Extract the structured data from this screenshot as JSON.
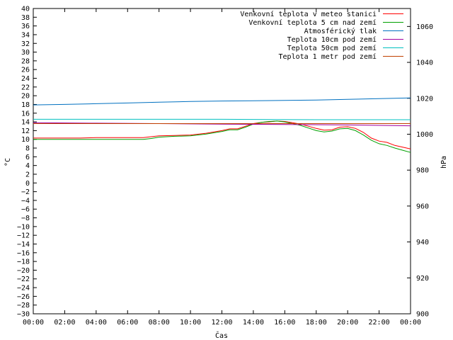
{
  "chart_data": {
    "type": "line",
    "xlabel": "Čas",
    "ylabel_left": "°C",
    "ylabel_right": "hPa",
    "x_ticks": [
      "00:00",
      "02:00",
      "04:00",
      "06:00",
      "08:00",
      "10:00",
      "12:00",
      "14:00",
      "16:00",
      "18:00",
      "20:00",
      "22:00",
      "00:00"
    ],
    "xlim_hours": [
      0,
      24
    ],
    "ylim_left": [
      -30,
      40
    ],
    "y_left_step": 2,
    "ylim_right": [
      900,
      1070
    ],
    "y_right_ticks": [
      900,
      920,
      940,
      960,
      980,
      1000,
      1020,
      1040,
      1060
    ],
    "grid": false,
    "legend_placement": "top-right",
    "series": [
      {
        "name": "Venkovní teplota v meteo stanici",
        "color": "#ff0000",
        "axis": "left",
        "x": [
          0,
          1,
          2,
          3,
          4,
          5,
          6,
          7,
          7.5,
          8,
          9,
          10,
          11,
          12,
          12.5,
          13,
          13.5,
          14,
          14.5,
          15,
          15.5,
          16,
          16.5,
          17,
          17.5,
          18,
          18.5,
          19,
          19.5,
          20,
          20.5,
          21,
          21.5,
          22,
          22.5,
          23,
          23.5,
          24
        ],
        "values": [
          10.3,
          10.3,
          10.3,
          10.3,
          10.4,
          10.4,
          10.4,
          10.4,
          10.6,
          10.8,
          10.9,
          11,
          11.4,
          12,
          12.4,
          12.4,
          13,
          13.6,
          13.9,
          14,
          14.2,
          14.1,
          13.8,
          13.5,
          13,
          12.5,
          12.1,
          12.2,
          12.8,
          12.9,
          12.5,
          11.6,
          10.3,
          9.6,
          9.3,
          8.6,
          8.2,
          7.8
        ]
      },
      {
        "name": "Venkovní teplota 5 cm nad zemí",
        "color": "#00a000",
        "axis": "left",
        "x": [
          0,
          1,
          2,
          3,
          4,
          5,
          6,
          7,
          7.5,
          8,
          9,
          10,
          11,
          12,
          12.5,
          13,
          13.5,
          14,
          14.5,
          15,
          15.5,
          16,
          16.5,
          17,
          17.5,
          18,
          18.5,
          19,
          19.5,
          20,
          20.5,
          21,
          21.5,
          22,
          22.5,
          23,
          23.5,
          24
        ],
        "values": [
          10,
          10,
          10,
          10,
          10,
          10,
          10,
          10,
          10.2,
          10.5,
          10.7,
          10.8,
          11.2,
          11.8,
          12.2,
          12.2,
          12.8,
          13.5,
          13.9,
          14.1,
          14.2,
          14,
          13.6,
          13.2,
          12.6,
          12,
          11.7,
          11.9,
          12.4,
          12.5,
          12,
          11,
          9.8,
          9,
          8.6,
          8,
          7.5,
          7
        ]
      },
      {
        "name": "Atmosférický tlak",
        "color": "#0070c0",
        "axis": "right",
        "x": [
          0,
          2,
          4,
          6,
          8,
          10,
          12,
          14,
          16,
          18,
          20,
          22,
          24
        ],
        "values": [
          1016.3,
          1016.6,
          1017,
          1017.4,
          1017.8,
          1018.2,
          1018.5,
          1018.6,
          1018.8,
          1019,
          1019.4,
          1019.8,
          1020.2
        ]
      },
      {
        "name": "Teplota 10cm pod zemí",
        "color": "#a000a0",
        "axis": "left",
        "x": [
          0,
          4,
          8,
          12,
          16,
          20,
          24
        ],
        "values": [
          13.8,
          13.7,
          13.6,
          13.5,
          13.4,
          13.3,
          13.1
        ]
      },
      {
        "name": "Teplota 50cm pod zemí",
        "color": "#00c0c0",
        "axis": "left",
        "x": [
          0,
          6,
          12,
          18,
          24
        ],
        "values": [
          14.6,
          14.6,
          14.6,
          14.5,
          14.5
        ]
      },
      {
        "name": "Teplota 1 metr pod zemí",
        "color": "#c04000",
        "axis": "left",
        "x": [
          0,
          24
        ],
        "values": [
          13.6,
          13.6
        ]
      }
    ]
  }
}
